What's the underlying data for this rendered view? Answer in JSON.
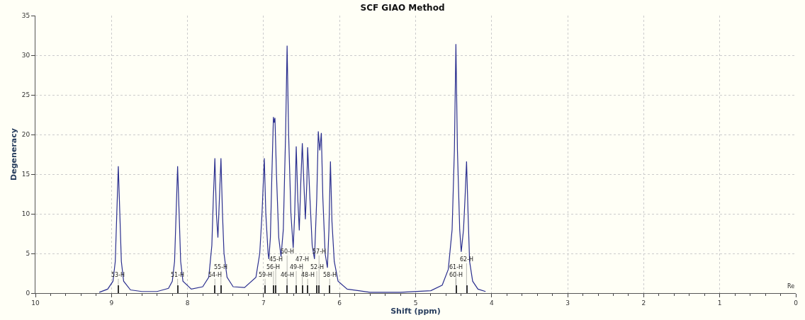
{
  "chart_data": {
    "type": "line",
    "title": "SCF GIAO Method",
    "xlabel": "Shift (ppm)",
    "ylabel": "Degeneracy",
    "xlim": [
      10,
      0
    ],
    "xticks": [
      10,
      9,
      8,
      7,
      6,
      5,
      4,
      3,
      2,
      1,
      0
    ],
    "ylim": [
      0,
      35
    ],
    "yticks": [
      0,
      5,
      10,
      15,
      20,
      25,
      30,
      35
    ],
    "grid": true,
    "series": [
      {
        "color": "#2b2f8f",
        "x": [
          9.16,
          9.05,
          8.98,
          8.95,
          8.93,
          8.91,
          8.89,
          8.87,
          8.84,
          8.75,
          8.6,
          8.4,
          8.25,
          8.2,
          8.17,
          8.15,
          8.13,
          8.11,
          8.09,
          8.06,
          7.95,
          7.8,
          7.72,
          7.68,
          7.66,
          7.64,
          7.62,
          7.6,
          7.58,
          7.56,
          7.54,
          7.52,
          7.48,
          7.4,
          7.25,
          7.1,
          7.05,
          7.02,
          6.99,
          6.97,
          6.94,
          6.93,
          6.91,
          6.89,
          6.87,
          6.86,
          6.85,
          6.83,
          6.8,
          6.77,
          6.74,
          6.71,
          6.69,
          6.67,
          6.64,
          6.61,
          6.59,
          6.57,
          6.55,
          6.53,
          6.51,
          6.49,
          6.47,
          6.45,
          6.43,
          6.42,
          6.39,
          6.36,
          6.33,
          6.3,
          6.28,
          6.26,
          6.24,
          6.22,
          6.19,
          6.16,
          6.14,
          6.12,
          6.1,
          6.07,
          6.02,
          5.9,
          5.6,
          5.2,
          4.8,
          4.65,
          4.57,
          4.52,
          4.49,
          4.47,
          4.45,
          4.42,
          4.4,
          4.37,
          4.35,
          4.33,
          4.31,
          4.29,
          4.25,
          4.18,
          4.08
        ],
        "values": [
          0.1,
          0.5,
          1.5,
          4,
          10,
          16,
          10,
          4,
          1.5,
          0.4,
          0.2,
          0.2,
          0.6,
          1.5,
          4,
          10,
          16,
          10,
          4,
          1.5,
          0.5,
          0.8,
          2,
          6,
          12,
          17,
          10,
          7,
          12,
          17,
          10,
          5,
          2,
          0.8,
          0.7,
          2,
          5,
          10,
          17,
          10,
          5,
          4.3,
          7,
          15,
          22.2,
          21.5,
          22.1,
          15,
          7,
          4.6,
          8,
          20,
          31.2,
          20,
          10,
          5.7,
          10,
          18.5,
          12,
          7.9,
          14,
          18.9,
          14,
          9.3,
          14,
          18.4,
          12,
          6,
          4.3,
          12,
          20.4,
          18,
          20.2,
          12,
          5,
          3.2,
          8,
          16.6,
          9,
          4,
          1.5,
          0.5,
          0.1,
          0.1,
          0.3,
          1,
          3,
          8,
          18,
          31.4,
          18,
          8,
          5.2,
          8,
          12,
          16.6,
          10,
          4,
          1.5,
          0.5,
          0.2
        ]
      },
      {
        "type": "bar",
        "color": "#333333",
        "x": [
          8.91,
          8.13,
          7.64,
          7.56,
          6.98,
          6.87,
          6.84,
          6.69,
          6.57,
          6.49,
          6.42,
          6.3,
          6.27,
          6.13,
          4.47,
          4.33
        ],
        "values": [
          1,
          1,
          1,
          1,
          1,
          1,
          1,
          1,
          1,
          1,
          1,
          1,
          1,
          1,
          1,
          1
        ]
      }
    ],
    "annotations": [
      {
        "text": "53-H",
        "x": 8.91,
        "y": 1
      },
      {
        "text": "51-H",
        "x": 8.13,
        "y": 1
      },
      {
        "text": "54-H",
        "x": 7.64,
        "y": 1
      },
      {
        "text": "55-H",
        "x": 7.56,
        "y": 1
      },
      {
        "text": "59-H",
        "x": 6.98,
        "y": 1
      },
      {
        "text": "56-H",
        "x": 6.87,
        "y": 1
      },
      {
        "text": "45-H",
        "x": 6.84,
        "y": 1
      },
      {
        "text": "46-H",
        "x": 6.69,
        "y": 1
      },
      {
        "text": "50-H",
        "x": 6.69,
        "y": 1
      },
      {
        "text": "49-H",
        "x": 6.57,
        "y": 1
      },
      {
        "text": "47-H",
        "x": 6.49,
        "y": 1
      },
      {
        "text": "48-H",
        "x": 6.42,
        "y": 1
      },
      {
        "text": "52-H",
        "x": 6.3,
        "y": 1
      },
      {
        "text": "57-H",
        "x": 6.27,
        "y": 1
      },
      {
        "text": "58-H",
        "x": 6.13,
        "y": 1
      },
      {
        "text": "60-H",
        "x": 4.47,
        "y": 1
      },
      {
        "text": "61-H",
        "x": 4.47,
        "y": 1
      },
      {
        "text": "62-H",
        "x": 4.33,
        "y": 1
      },
      "Re"
    ]
  }
}
